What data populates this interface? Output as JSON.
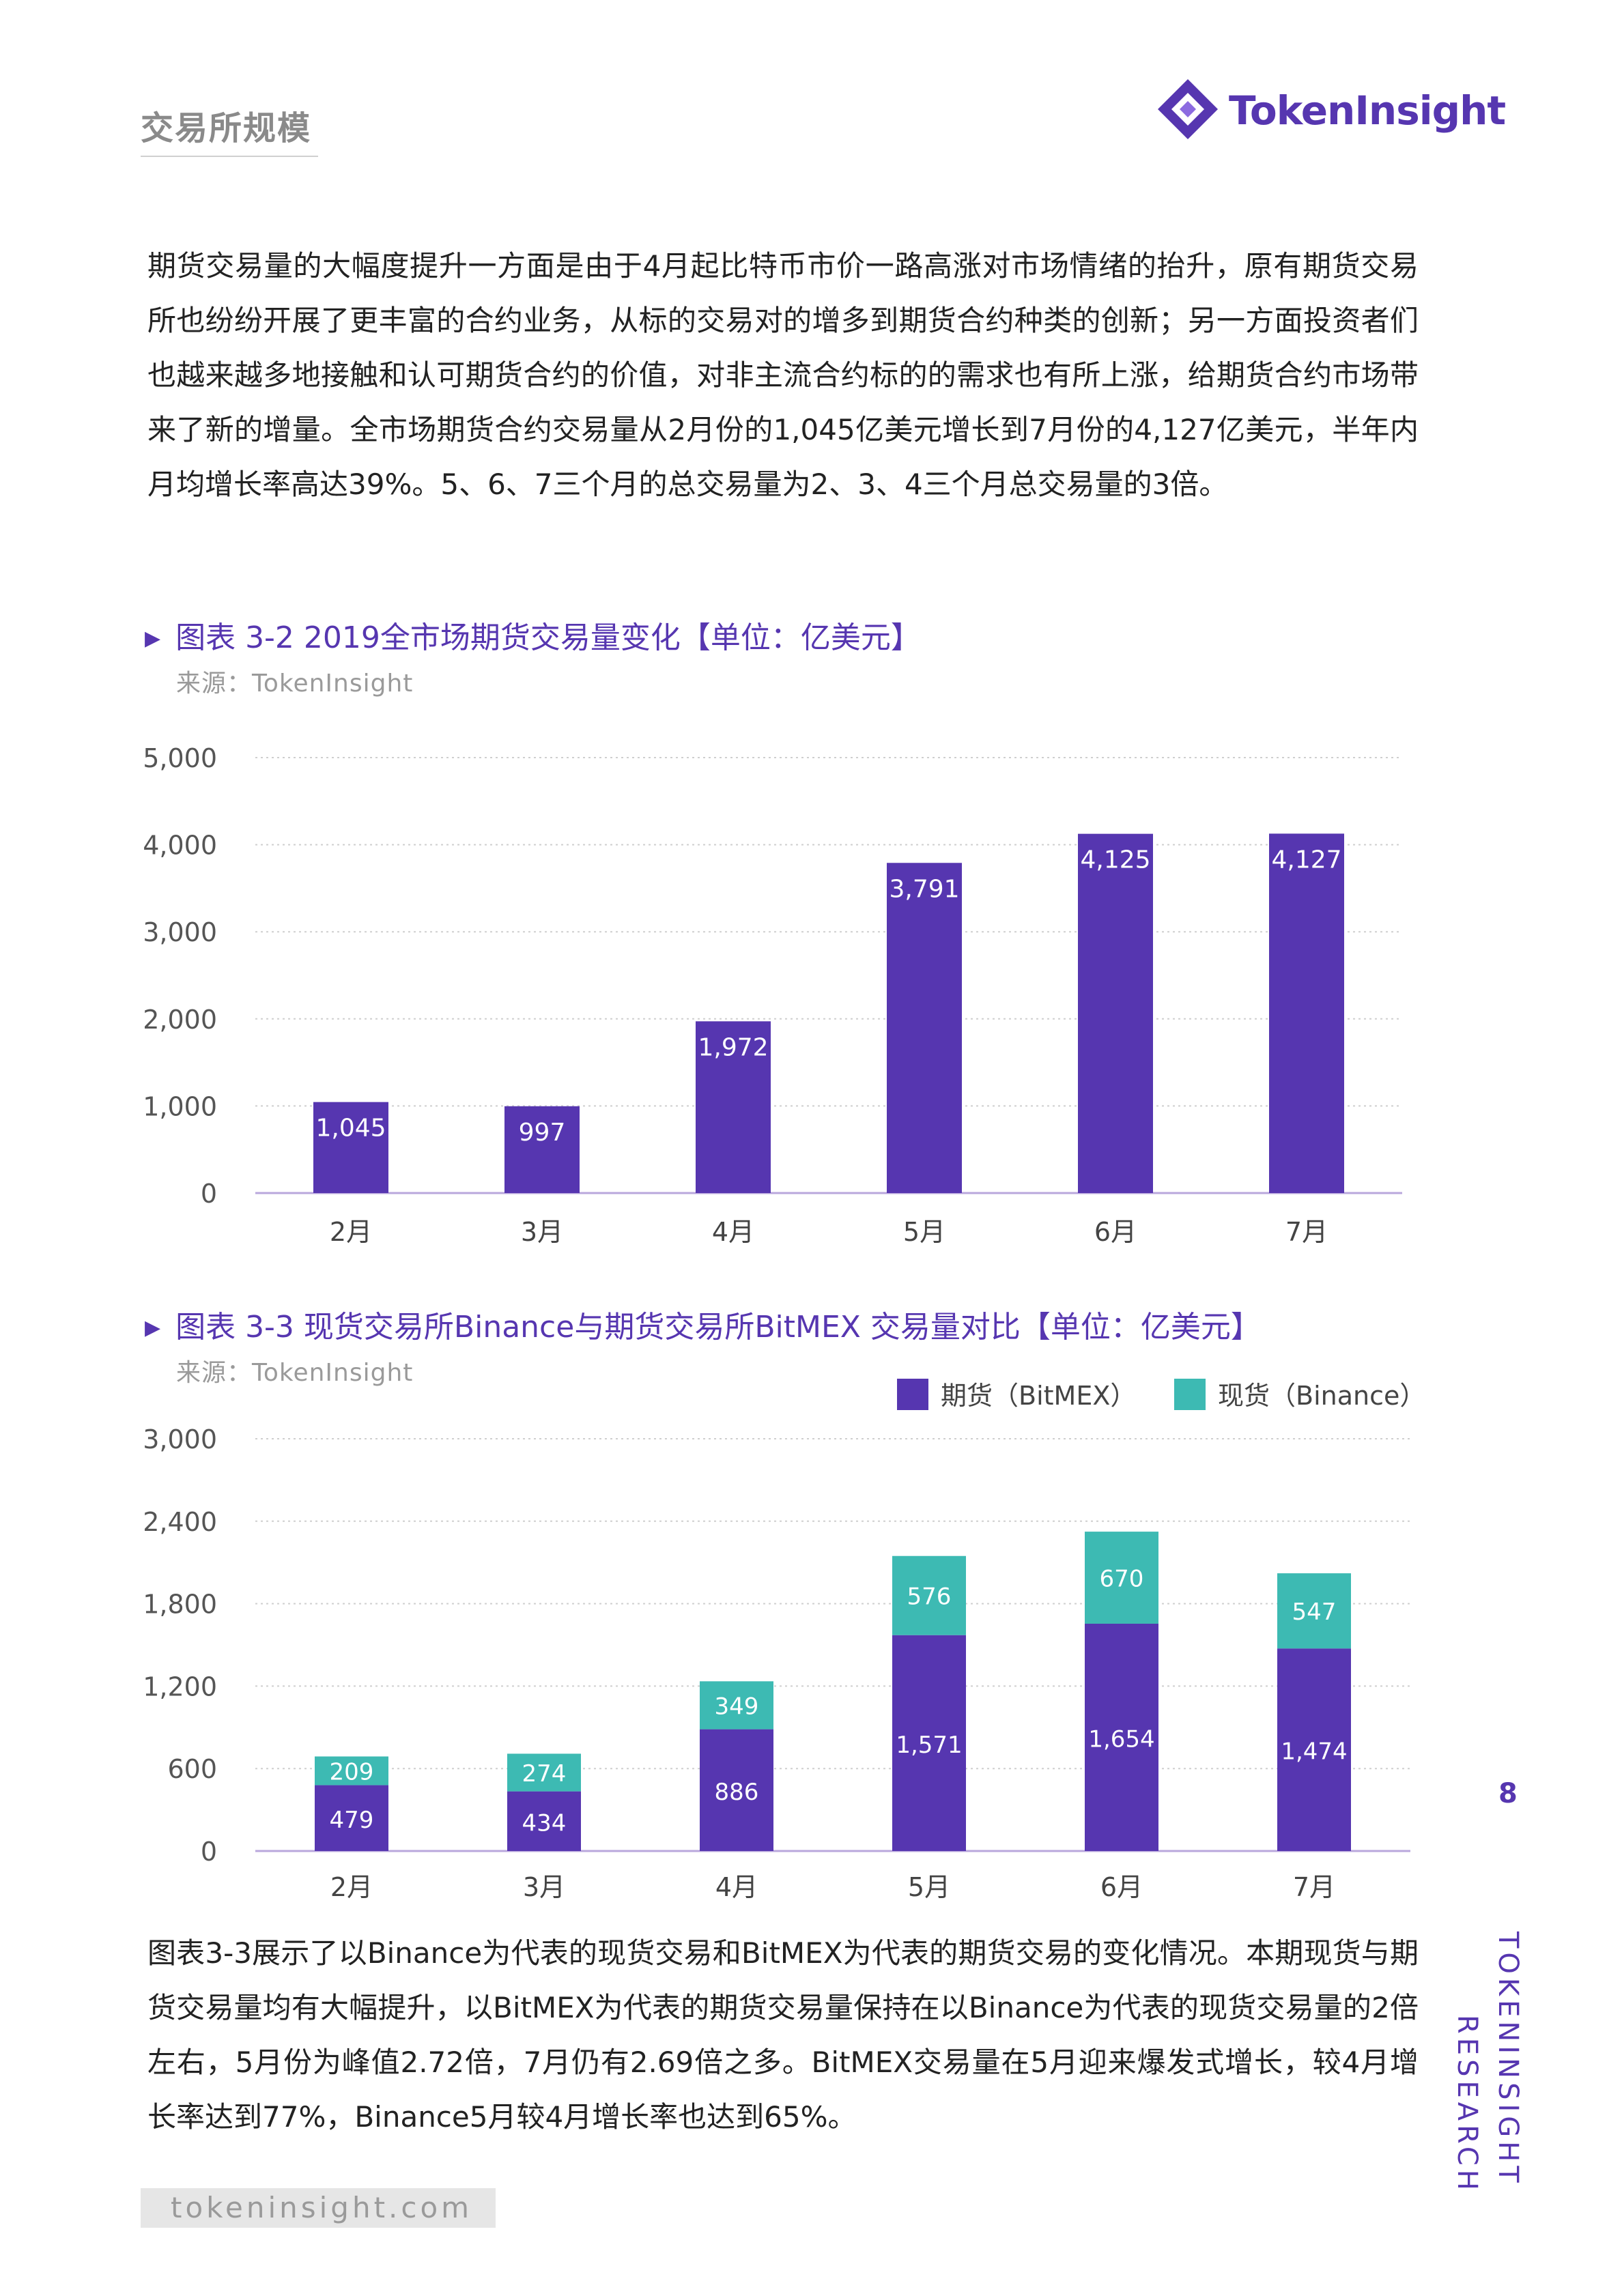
{
  "header": {
    "section_title": "交易所规模",
    "logo_text": "TokenInsight"
  },
  "paragraph1": "期货交易量的大幅度提升一方面是由于4月起比特币市价一路高涨对市场情绪的抬升，原有期货交易所也纷纷开展了更丰富的合约业务，从标的交易对的增多到期货合约种类的创新；另一方面投资者们也越来越多地接触和认可期货合约的价值，对非主流合约标的的需求也有所上涨，给期货合约市场带来了新的增量。全市场期货合约交易量从2月份的1,045亿美元增长到7月份的4,127亿美元，半年内月均增长率高达39%。5、6、7三个月的总交易量为2、3、4三个月总交易量的3倍。",
  "figure1": {
    "title": "图表 3-2 2019全市场期货交易量变化【单位：亿美元】",
    "source": "来源：TokenInsight"
  },
  "figure2": {
    "title": "图表 3-3 现货交易所Binance与期货交易所BitMEX 交易量对比【单位：亿美元】",
    "source": "来源：TokenInsight"
  },
  "paragraph2": "图表3-3展示了以Binance为代表的现货交易和BitMEX为代表的期货交易的变化情况。本期现货与期货交易量均有大幅提升，以BitMEX为代表的期货交易量保持在以Binance为代表的现货交易量的2倍左右，5月份为峰值2.72倍，7月仍有2.69倍之多。BitMEX交易量在5月迎来爆发式增长，较4月增长率达到77%，Binance5月较4月增长率也达到65%。",
  "page_number": "8",
  "side_text": [
    "TOKENINSIGHT",
    "RESEARCH"
  ],
  "footer_url": "tokeninsight.com",
  "colors": {
    "purple": "#5636b0",
    "teal": "#3dbab3"
  },
  "chart_data": [
    {
      "type": "bar",
      "categories": [
        "2月",
        "3月",
        "4月",
        "5月",
        "6月",
        "7月"
      ],
      "values": [
        1045,
        997,
        1972,
        3791,
        4125,
        4127
      ],
      "value_labels": [
        "1,045",
        "997",
        "1,972",
        "3,791",
        "4,125",
        "4,127"
      ],
      "ylim": [
        0,
        5000
      ],
      "yticks": [
        0,
        1000,
        2000,
        3000,
        4000,
        5000
      ],
      "ytick_labels": [
        "0",
        "1,000",
        "2,000",
        "3,000",
        "4,000",
        "5,000"
      ],
      "grid": true
    },
    {
      "type": "bar",
      "stacked": true,
      "categories": [
        "2月",
        "3月",
        "4月",
        "5月",
        "6月",
        "7月"
      ],
      "series": [
        {
          "name": "期货（BitMEX）",
          "values": [
            479,
            434,
            886,
            1571,
            1654,
            1474
          ],
          "value_labels": [
            "479",
            "434",
            "886",
            "1,571",
            "1,654",
            "1,474"
          ]
        },
        {
          "name": "现货（Binance）",
          "values": [
            209,
            274,
            349,
            576,
            670,
            547
          ],
          "value_labels": [
            "209",
            "274",
            "349",
            "576",
            "670",
            "547"
          ]
        }
      ],
      "ylim": [
        0,
        3000
      ],
      "yticks": [
        0,
        600,
        1200,
        1800,
        2400,
        3000
      ],
      "ytick_labels": [
        "0",
        "600",
        "1,200",
        "1,800",
        "2,400",
        "3,000"
      ],
      "legend": "top-right",
      "grid": true
    }
  ]
}
